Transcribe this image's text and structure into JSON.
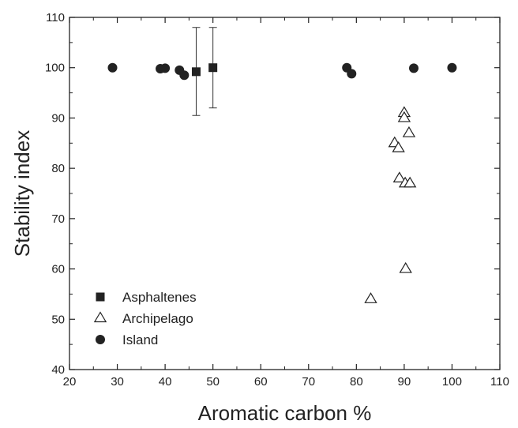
{
  "chart_data": {
    "type": "scatter",
    "xlabel": "Aromatic carbon %",
    "ylabel": "Stability index",
    "xlim": [
      20,
      110
    ],
    "ylim": [
      40,
      110
    ],
    "xticks": [
      20,
      30,
      40,
      50,
      60,
      70,
      80,
      90,
      100,
      110
    ],
    "yticks": [
      40,
      50,
      60,
      70,
      80,
      90,
      100,
      110
    ],
    "grid": false,
    "legend_position": "lower-left",
    "series": [
      {
        "name": "Asphaltenes",
        "marker": "square-filled",
        "color": "#222222",
        "points": [
          {
            "x": 46.5,
            "y": 99.2,
            "err_low": 90.5,
            "err_high": 108
          },
          {
            "x": 50,
            "y": 100,
            "err_low": 92,
            "err_high": 108
          }
        ]
      },
      {
        "name": "Archipelago",
        "marker": "triangle-open",
        "color": "#222222",
        "points": [
          {
            "x": 90,
            "y": 91
          },
          {
            "x": 90,
            "y": 90
          },
          {
            "x": 91,
            "y": 87
          },
          {
            "x": 88,
            "y": 85
          },
          {
            "x": 88.8,
            "y": 84
          },
          {
            "x": 89,
            "y": 78
          },
          {
            "x": 90.2,
            "y": 77
          },
          {
            "x": 91.2,
            "y": 77
          },
          {
            "x": 90.3,
            "y": 60
          },
          {
            "x": 83,
            "y": 54
          }
        ]
      },
      {
        "name": "Island",
        "marker": "circle-filled",
        "color": "#222222",
        "points": [
          {
            "x": 29,
            "y": 100
          },
          {
            "x": 39,
            "y": 99.8
          },
          {
            "x": 40,
            "y": 99.9
          },
          {
            "x": 43,
            "y": 99.5
          },
          {
            "x": 44,
            "y": 98.5
          },
          {
            "x": 78,
            "y": 100
          },
          {
            "x": 79,
            "y": 98.8
          },
          {
            "x": 92,
            "y": 99.9
          },
          {
            "x": 100,
            "y": 100
          }
        ]
      }
    ]
  }
}
